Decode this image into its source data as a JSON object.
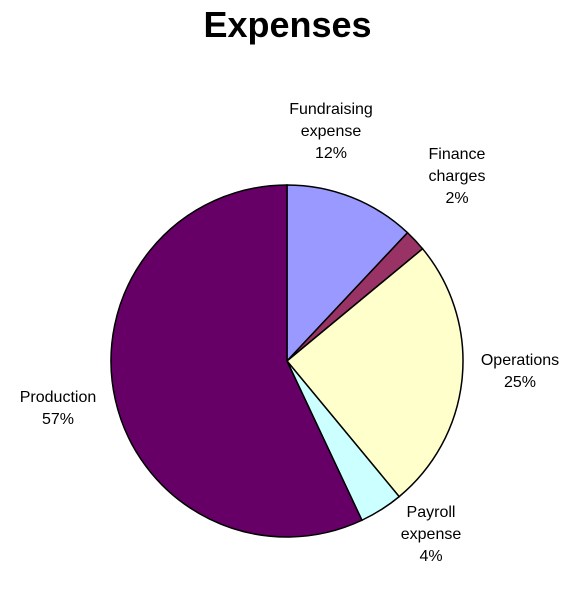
{
  "chart_data": {
    "type": "pie",
    "title": "Expenses",
    "slices": [
      {
        "label_lines": [
          "Fundraising",
          "expense"
        ],
        "value": 12,
        "pct_label": "12%",
        "color": "#9999ff"
      },
      {
        "label_lines": [
          "Finance",
          "charges"
        ],
        "value": 2,
        "pct_label": "2%",
        "color": "#993366"
      },
      {
        "label_lines": [
          "Operations"
        ],
        "value": 25,
        "pct_label": "25%",
        "color": "#ffffcc"
      },
      {
        "label_lines": [
          "Payroll",
          "expense"
        ],
        "value": 4,
        "pct_label": "4%",
        "color": "#ccffff"
      },
      {
        "label_lines": [
          "Production"
        ],
        "value": 57,
        "pct_label": "57%",
        "color": "#660066"
      }
    ],
    "start": "12 o'clock",
    "direction": "clockwise",
    "legend": "none"
  }
}
